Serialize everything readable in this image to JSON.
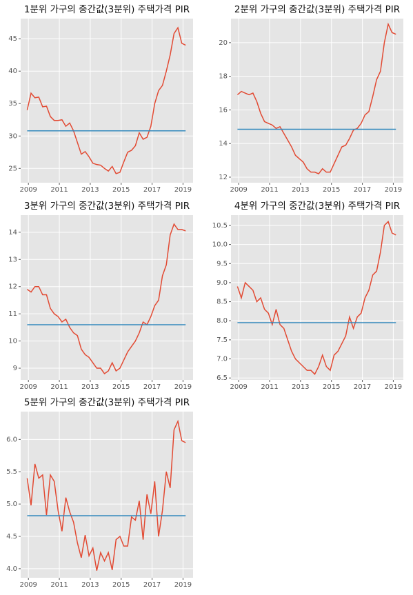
{
  "chart_data": [
    {
      "type": "line",
      "title": "1분위 가구의 중간값(3분위) 주택가격 PIR",
      "x": [
        2008.92,
        2009.17,
        2009.42,
        2009.67,
        2009.92,
        2010.17,
        2010.42,
        2010.67,
        2010.92,
        2011.17,
        2011.42,
        2011.67,
        2011.92,
        2012.17,
        2012.42,
        2012.67,
        2012.92,
        2013.17,
        2013.42,
        2013.67,
        2013.92,
        2014.17,
        2014.42,
        2014.67,
        2014.92,
        2015.17,
        2015.42,
        2015.67,
        2015.92,
        2016.17,
        2016.42,
        2016.67,
        2016.92,
        2017.17,
        2017.42,
        2017.67,
        2017.92,
        2018.17,
        2018.42,
        2018.67,
        2018.92,
        2019.17
      ],
      "series": [
        {
          "color": "#e24a33",
          "values": [
            34.0,
            36.6,
            35.9,
            36.0,
            34.5,
            34.6,
            33.0,
            32.4,
            32.4,
            32.5,
            31.5,
            32.0,
            30.8,
            29.0,
            27.2,
            27.6,
            26.8,
            25.8,
            25.6,
            25.5,
            25.0,
            24.6,
            25.3,
            24.2,
            24.4,
            26.0,
            27.5,
            27.8,
            28.5,
            30.5,
            29.5,
            29.8,
            31.5,
            35.0,
            37.0,
            37.8,
            40.0,
            42.5,
            45.8,
            46.7,
            44.3,
            44.0
          ]
        }
      ],
      "hline": {
        "value": 30.8,
        "color": "#348abd"
      },
      "xlim": [
        2008.5,
        2019.65
      ],
      "xticks": [
        2009,
        2011,
        2013,
        2015,
        2017,
        2019
      ],
      "ylim": [
        22.8,
        48.1
      ],
      "yticks": [
        25,
        30,
        35,
        40,
        45
      ],
      "grid": true
    },
    {
      "type": "line",
      "title": "2분위 가구의 중간값(3분위) 주택가격 PIR",
      "x": [
        2008.92,
        2009.17,
        2009.42,
        2009.67,
        2009.92,
        2010.17,
        2010.42,
        2010.67,
        2010.92,
        2011.17,
        2011.42,
        2011.67,
        2011.92,
        2012.17,
        2012.42,
        2012.67,
        2012.92,
        2013.17,
        2013.42,
        2013.67,
        2013.92,
        2014.17,
        2014.42,
        2014.67,
        2014.92,
        2015.17,
        2015.42,
        2015.67,
        2015.92,
        2016.17,
        2016.42,
        2016.67,
        2016.92,
        2017.17,
        2017.42,
        2017.67,
        2017.92,
        2018.17,
        2018.42,
        2018.67,
        2018.92,
        2019.17
      ],
      "series": [
        {
          "color": "#e24a33",
          "values": [
            16.9,
            17.1,
            17.0,
            16.9,
            17.0,
            16.5,
            15.8,
            15.3,
            15.2,
            15.1,
            14.9,
            15.0,
            14.6,
            14.2,
            13.8,
            13.3,
            13.1,
            12.9,
            12.5,
            12.3,
            12.3,
            12.2,
            12.5,
            12.3,
            12.3,
            12.8,
            13.3,
            13.8,
            13.9,
            14.3,
            14.8,
            14.9,
            15.2,
            15.7,
            15.9,
            16.8,
            17.8,
            18.3,
            20.0,
            21.1,
            20.6,
            20.5
          ]
        }
      ],
      "hline": {
        "value": 14.85,
        "color": "#348abd"
      },
      "xlim": [
        2008.5,
        2019.65
      ],
      "xticks": [
        2009,
        2011,
        2013,
        2015,
        2017,
        2019
      ],
      "ylim": [
        11.67,
        21.43
      ],
      "yticks": [
        12,
        14,
        16,
        18,
        20
      ],
      "grid": true
    },
    {
      "type": "line",
      "title": "3분위 가구의 중간값(3분위) 주택가격 PIR",
      "x": [
        2008.92,
        2009.17,
        2009.42,
        2009.67,
        2009.92,
        2010.17,
        2010.42,
        2010.67,
        2010.92,
        2011.17,
        2011.42,
        2011.67,
        2011.92,
        2012.17,
        2012.42,
        2012.67,
        2012.92,
        2013.17,
        2013.42,
        2013.67,
        2013.92,
        2014.17,
        2014.42,
        2014.67,
        2014.92,
        2015.17,
        2015.42,
        2015.67,
        2015.92,
        2016.17,
        2016.42,
        2016.67,
        2016.92,
        2017.17,
        2017.42,
        2017.67,
        2017.92,
        2018.17,
        2018.42,
        2018.67,
        2018.92,
        2019.17
      ],
      "series": [
        {
          "color": "#e24a33",
          "values": [
            11.9,
            11.8,
            12.0,
            12.0,
            11.7,
            11.7,
            11.2,
            11.0,
            10.9,
            10.7,
            10.8,
            10.5,
            10.3,
            10.2,
            9.7,
            9.5,
            9.4,
            9.2,
            9.0,
            9.0,
            8.8,
            8.9,
            9.2,
            8.9,
            9.0,
            9.3,
            9.6,
            9.8,
            10.0,
            10.3,
            10.7,
            10.6,
            10.9,
            11.3,
            11.5,
            12.4,
            12.8,
            13.9,
            14.3,
            14.1,
            14.1,
            14.05
          ]
        }
      ],
      "hline": {
        "value": 10.6,
        "color": "#348abd"
      },
      "xlim": [
        2008.5,
        2019.65
      ],
      "xticks": [
        2009,
        2011,
        2013,
        2015,
        2017,
        2019
      ],
      "ylim": [
        8.57,
        14.63
      ],
      "yticks": [
        9,
        10,
        11,
        12,
        13,
        14
      ],
      "grid": true
    },
    {
      "type": "line",
      "title": "4분위 가구의 중간값(3분위) 주택가격 PIR",
      "x": [
        2008.92,
        2009.17,
        2009.42,
        2009.67,
        2009.92,
        2010.17,
        2010.42,
        2010.67,
        2010.92,
        2011.17,
        2011.42,
        2011.67,
        2011.92,
        2012.17,
        2012.42,
        2012.67,
        2012.92,
        2013.17,
        2013.42,
        2013.67,
        2013.92,
        2014.17,
        2014.42,
        2014.67,
        2014.92,
        2015.17,
        2015.42,
        2015.67,
        2015.92,
        2016.17,
        2016.42,
        2016.67,
        2016.92,
        2017.17,
        2017.42,
        2017.67,
        2017.92,
        2018.17,
        2018.42,
        2018.67,
        2018.92,
        2019.17
      ],
      "series": [
        {
          "color": "#e24a33",
          "values": [
            8.9,
            8.6,
            9.0,
            8.9,
            8.8,
            8.5,
            8.6,
            8.3,
            8.2,
            7.9,
            8.3,
            7.9,
            7.8,
            7.5,
            7.2,
            7.0,
            6.9,
            6.8,
            6.7,
            6.7,
            6.6,
            6.8,
            7.1,
            6.8,
            6.7,
            7.1,
            7.2,
            7.4,
            7.6,
            8.1,
            7.8,
            8.1,
            8.2,
            8.6,
            8.8,
            9.2,
            9.3,
            9.8,
            10.5,
            10.6,
            10.3,
            10.25
          ]
        }
      ],
      "hline": {
        "value": 7.95,
        "color": "#348abd"
      },
      "xlim": [
        2008.5,
        2019.65
      ],
      "xticks": [
        2009,
        2011,
        2013,
        2015,
        2017,
        2019
      ],
      "ylim": [
        6.45,
        10.77
      ],
      "yticks": [
        6.5,
        {
          "value": 7,
          "label": "7.0"
        },
        7.5,
        {
          "value": 8,
          "label": "8.0"
        },
        8.5,
        {
          "value": 9,
          "label": "9.0"
        },
        9.5,
        {
          "value": 10,
          "label": "10.0"
        },
        10.5
      ],
      "grid": true
    },
    {
      "type": "line",
      "title": "5분위 가구의 중간값(3분위) 주택가격 PIR",
      "x": [
        2008.92,
        2009.17,
        2009.42,
        2009.67,
        2009.92,
        2010.17,
        2010.42,
        2010.67,
        2010.92,
        2011.17,
        2011.42,
        2011.67,
        2011.92,
        2012.17,
        2012.42,
        2012.67,
        2012.92,
        2013.17,
        2013.42,
        2013.67,
        2013.92,
        2014.17,
        2014.42,
        2014.67,
        2014.92,
        2015.17,
        2015.42,
        2015.67,
        2015.92,
        2016.17,
        2016.42,
        2016.67,
        2016.92,
        2017.17,
        2017.42,
        2017.67,
        2017.92,
        2018.17,
        2018.42,
        2018.67,
        2018.92,
        2019.17
      ],
      "series": [
        {
          "color": "#e24a33",
          "values": [
            5.4,
            4.98,
            5.62,
            5.4,
            5.45,
            4.83,
            5.45,
            5.35,
            4.9,
            4.58,
            5.1,
            4.88,
            4.72,
            4.4,
            4.17,
            4.52,
            4.2,
            4.32,
            3.97,
            4.25,
            4.12,
            4.25,
            3.98,
            4.45,
            4.5,
            4.35,
            4.35,
            4.8,
            4.75,
            5.05,
            4.45,
            5.15,
            4.85,
            5.35,
            4.5,
            4.9,
            5.5,
            5.25,
            6.15,
            6.28,
            5.98,
            5.95
          ]
        }
      ],
      "hline": {
        "value": 4.82,
        "color": "#348abd"
      },
      "xlim": [
        2008.5,
        2019.65
      ],
      "xticks": [
        2009,
        2011,
        2013,
        2015,
        2017,
        2019
      ],
      "ylim": [
        3.86,
        6.43
      ],
      "yticks": [
        {
          "value": 4,
          "label": "4.0"
        },
        4.5,
        {
          "value": 5,
          "label": "5.0"
        },
        5.5,
        {
          "value": 6,
          "label": "6.0"
        }
      ],
      "grid": true
    }
  ]
}
